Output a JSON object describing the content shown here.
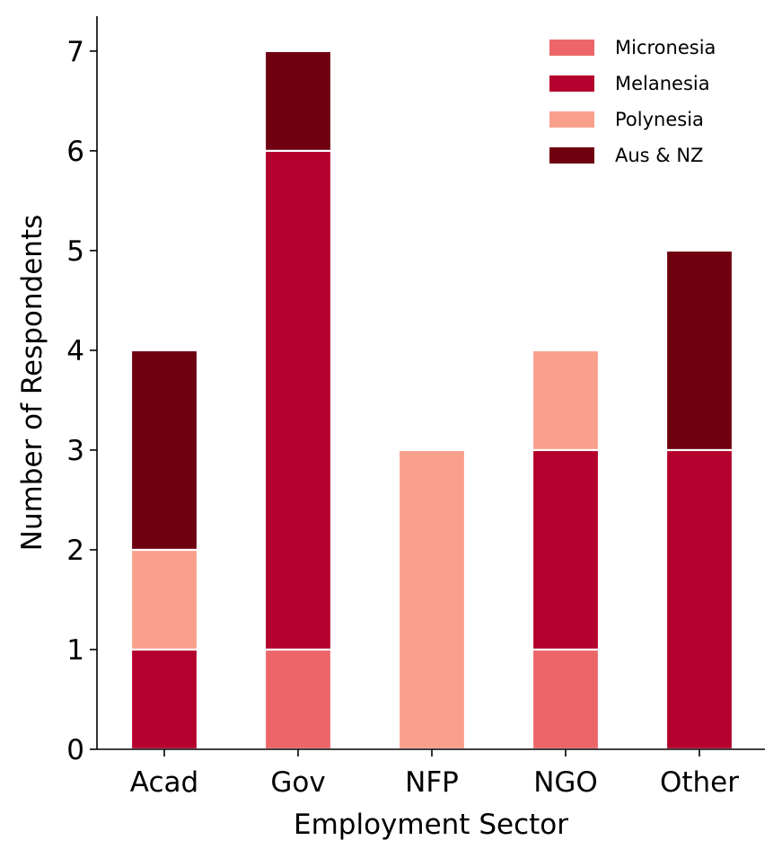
{
  "chart_data": {
    "type": "bar",
    "stacked": true,
    "xlabel": "Employment Sector",
    "ylabel": "Number of Respondents",
    "categories": [
      "Acad",
      "Gov",
      "NFP",
      "NGO",
      "Other"
    ],
    "series": [
      {
        "name": "Micronesia",
        "color": "#ec6669",
        "values": [
          0,
          1,
          0,
          1,
          0
        ]
      },
      {
        "name": "Melanesia",
        "color": "#b4002c",
        "values": [
          1,
          5,
          0,
          2,
          3
        ]
      },
      {
        "name": "Polynesia",
        "color": "#f9a08c",
        "values": [
          1,
          0,
          3,
          1,
          0
        ]
      },
      {
        "name": "Aus & NZ",
        "color": "#6e0010",
        "values": [
          2,
          1,
          0,
          0,
          2
        ]
      }
    ],
    "ylim": [
      0,
      7.35
    ],
    "yticks": [
      "0",
      "1",
      "2",
      "3",
      "4",
      "5",
      "6",
      "7"
    ],
    "grid": false,
    "legend_position": "top-right"
  }
}
